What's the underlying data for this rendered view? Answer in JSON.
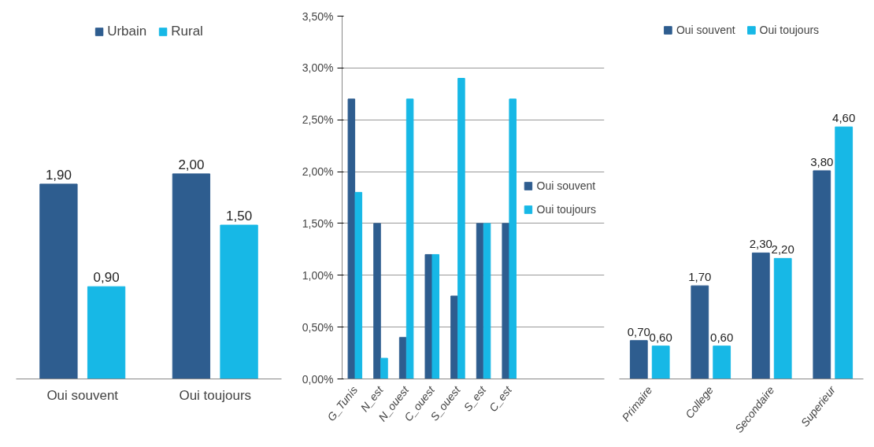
{
  "chart_data": [
    {
      "type": "bar",
      "categories": [
        "Oui souvent",
        "Oui toujours"
      ],
      "series": [
        {
          "name": "Urbain",
          "color": "#2e5d8f",
          "values": [
            1.9,
            2.0
          ],
          "value_labels": [
            "1,90",
            "2,00"
          ]
        },
        {
          "name": "Rural",
          "color": "#17b8e6",
          "values": [
            0.9,
            1.5
          ],
          "value_labels": [
            "0,90",
            "1,50"
          ]
        }
      ],
      "legend": "top",
      "grid": false
    },
    {
      "type": "bar",
      "categories": [
        "G_Tunis",
        "N_est",
        "N_ouest",
        "C_ouest",
        "S_ouest",
        "S_est",
        "C_est"
      ],
      "series": [
        {
          "name": "Oui souvent",
          "color": "#2e5d8f",
          "values": [
            2.7,
            1.5,
            0.4,
            1.2,
            0.8,
            1.5,
            1.5
          ]
        },
        {
          "name": "Oui toujours",
          "color": "#17b8e6",
          "values": [
            1.8,
            0.2,
            2.7,
            1.2,
            2.9,
            1.5,
            2.7
          ]
        }
      ],
      "ylim": [
        0,
        3.5
      ],
      "yticks": [
        {
          "value": 0,
          "label": "0,00%"
        },
        {
          "value": 0.5,
          "label": "0,50%"
        },
        {
          "value": 1,
          "label": "1,00%"
        },
        {
          "value": 1.5,
          "label": "1,50%"
        },
        {
          "value": 2,
          "label": "2,00%"
        },
        {
          "value": 2.5,
          "label": "2,50%"
        },
        {
          "value": 3,
          "label": "3,00%"
        },
        {
          "value": 3.5,
          "label": "3,50%"
        }
      ],
      "legend": "right",
      "grid": "y"
    },
    {
      "type": "bar",
      "categories": [
        "Primaire",
        "College",
        "Secondaire",
        "Superieur"
      ],
      "series": [
        {
          "name": "Oui souvent",
          "color": "#2e5d8f",
          "values": [
            0.7,
            1.7,
            2.3,
            3.8
          ],
          "value_labels": [
            "0,70",
            "1,70",
            "2,30",
            "3,80"
          ]
        },
        {
          "name": "Oui toujours",
          "color": "#17b8e6",
          "values": [
            0.6,
            0.6,
            2.2,
            4.6
          ],
          "value_labels": [
            "0,60",
            "0,60",
            "2,20",
            "4,60"
          ]
        }
      ],
      "legend": "top",
      "grid": false
    }
  ]
}
